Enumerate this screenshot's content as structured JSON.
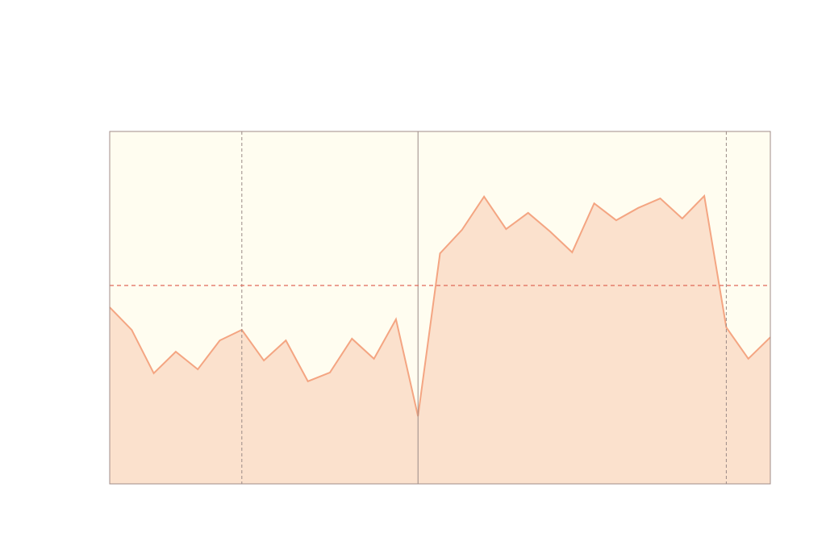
{
  "chart_data": {
    "type": "area",
    "x": [
      0,
      1,
      2,
      3,
      4,
      5,
      6,
      7,
      8,
      9,
      10,
      11,
      12,
      13,
      14,
      15,
      16,
      17,
      18,
      19,
      20,
      21,
      22,
      23,
      24,
      25,
      26,
      27,
      28,
      29,
      30
    ],
    "series": [
      {
        "color": "#f4a582",
        "fill": "#fbe1cd",
        "values": [
          50.1,
          43.7,
          31.4,
          37.5,
          32.5,
          40.7,
          43.7,
          35.0,
          40.7,
          29.1,
          31.6,
          41.2,
          35.5,
          46.7,
          19.2,
          65.4,
          72.1,
          81.5,
          72.3,
          76.9,
          71.6,
          65.7,
          79.6,
          74.8,
          78.3,
          81.0,
          75.3,
          81.7,
          44.4,
          35.5,
          41.6
        ]
      }
    ],
    "xlim": [
      0,
      30
    ],
    "ylim": [
      0,
      100
    ],
    "background": "#fffdf0",
    "vlines": [
      {
        "x": 6,
        "style": "dashed"
      },
      {
        "x": 14,
        "style": "solid"
      },
      {
        "x": 28,
        "style": "dashed"
      }
    ],
    "hlines": [
      {
        "y": 56.3,
        "style": "dashed",
        "color": "#e06a5a"
      }
    ]
  }
}
